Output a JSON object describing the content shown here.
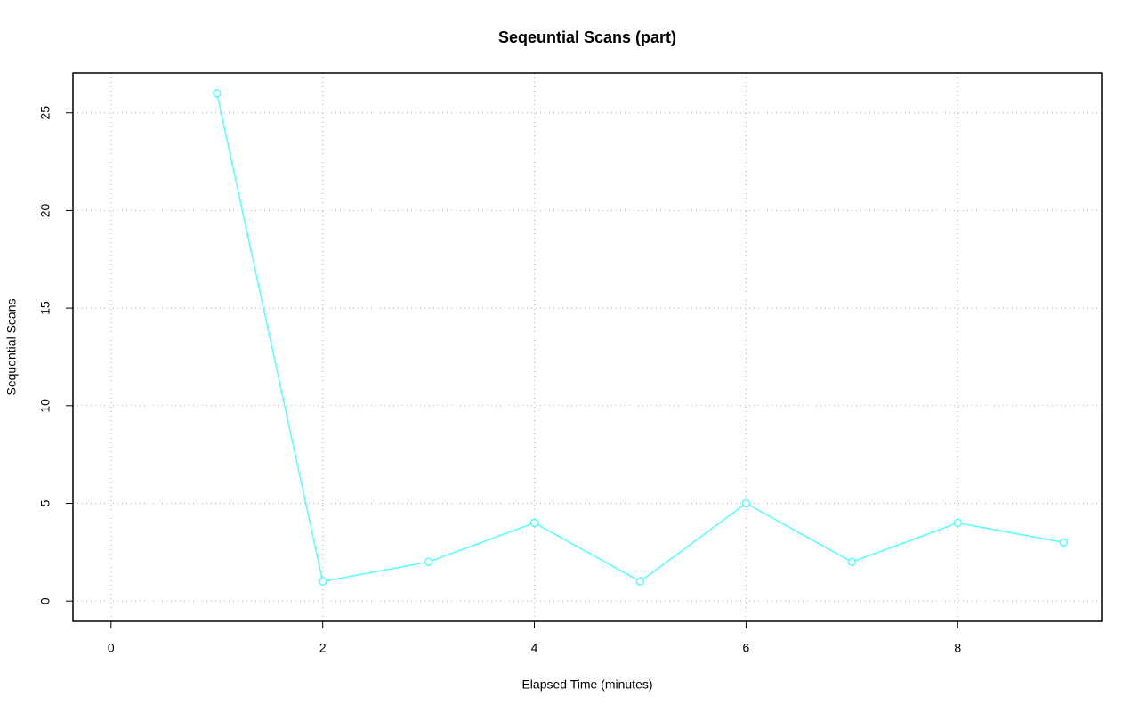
{
  "chart_data": {
    "type": "line",
    "title": "Seqeuntial Scans (part)",
    "x_label": "Elapsed Time (minutes)",
    "y_label": "Sequential Scans",
    "x": [
      1,
      2,
      3,
      4,
      5,
      6,
      7,
      8,
      9
    ],
    "values": [
      26,
      1,
      2,
      4,
      1,
      5,
      2,
      4,
      3
    ],
    "color": "#5ff",
    "xlim": [
      -0.36,
      9.36
    ],
    "xticks": [
      0,
      2,
      4,
      6,
      8
    ],
    "ylim": [
      -1.04,
      27.04
    ],
    "yticks": [
      0,
      5,
      10,
      15,
      20,
      25
    ],
    "grid": true
  }
}
